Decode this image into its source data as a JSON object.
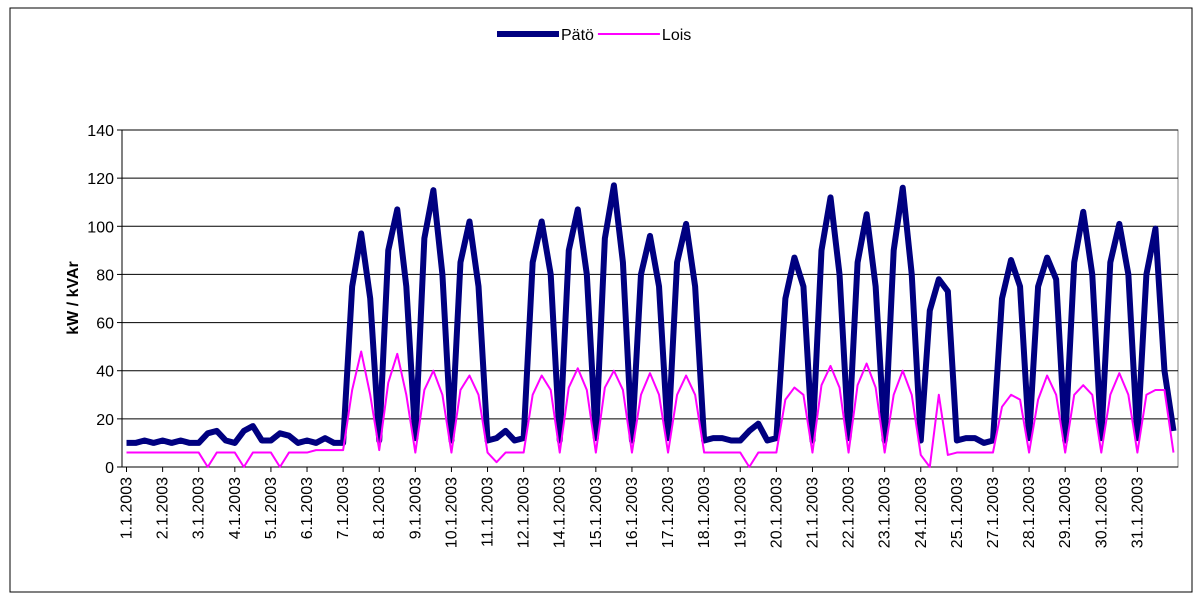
{
  "chart_data": {
    "type": "line",
    "ylabel": "kW / kVAr",
    "categories": [
      "1.1.2003",
      null,
      null,
      null,
      "2.1.2003",
      null,
      null,
      null,
      "3.1.2003",
      null,
      null,
      null,
      "4.1.2003",
      null,
      null,
      null,
      "5.1.2003",
      null,
      null,
      null,
      "6.1.2003",
      null,
      null,
      null,
      "7.1.2003",
      null,
      null,
      null,
      "8.1.2003",
      null,
      null,
      null,
      "9.1.2003",
      null,
      null,
      null,
      "10.1.2003",
      null,
      null,
      null,
      "11.1.2003",
      null,
      null,
      null,
      "12.1.2003",
      null,
      null,
      null,
      "14.1.2003",
      null,
      null,
      null,
      "15.1.2003",
      null,
      null,
      null,
      "16.1.2003",
      null,
      null,
      null,
      "17.1.2003",
      null,
      null,
      null,
      "18.1.2003",
      null,
      null,
      null,
      "19.1.2003",
      null,
      null,
      null,
      "20.1.2003",
      null,
      null,
      null,
      "21.1.2003",
      null,
      null,
      null,
      "22.1.2003",
      null,
      null,
      null,
      "23.1.2003",
      null,
      null,
      null,
      "24.1.2003",
      null,
      null,
      null,
      "25.1.2003",
      null,
      null,
      null,
      "27.1.2003",
      null,
      null,
      null,
      "28.1.2003",
      null,
      null,
      null,
      "29.1.2003",
      null,
      null,
      null,
      "30.1.2003",
      null,
      null,
      null,
      "31.1.2003",
      null,
      null,
      null,
      null
    ],
    "series": [
      {
        "name": "Pätö",
        "color": "#000080",
        "width": 6,
        "values": [
          10,
          10,
          11,
          10,
          11,
          10,
          11,
          10,
          10,
          14,
          15,
          11,
          10,
          15,
          17,
          11,
          11,
          14,
          13,
          10,
          11,
          10,
          12,
          10,
          10,
          75,
          97,
          70,
          11,
          90,
          107,
          75,
          12,
          95,
          115,
          80,
          11,
          85,
          102,
          75,
          11,
          12,
          15,
          11,
          12,
          85,
          102,
          80,
          11,
          90,
          107,
          80,
          12,
          95,
          117,
          85,
          11,
          80,
          96,
          75,
          12,
          85,
          101,
          75,
          11,
          12,
          12,
          11,
          11,
          15,
          18,
          11,
          12,
          70,
          87,
          75,
          11,
          90,
          112,
          80,
          12,
          85,
          105,
          75,
          11,
          90,
          116,
          80,
          11,
          65,
          78,
          73,
          11,
          12,
          12,
          10,
          11,
          70,
          86,
          75,
          12,
          75,
          87,
          78,
          11,
          85,
          106,
          80,
          12,
          85,
          101,
          80,
          12,
          80,
          99,
          40,
          15
        ]
      },
      {
        "name": "Lois",
        "color": "#ff00ff",
        "width": 2,
        "values": [
          6,
          6,
          6,
          6,
          6,
          6,
          6,
          6,
          6,
          0,
          6,
          6,
          6,
          0,
          6,
          6,
          6,
          0,
          6,
          6,
          6,
          7,
          7,
          7,
          7,
          32,
          48,
          30,
          7,
          35,
          47,
          30,
          6,
          32,
          40,
          30,
          6,
          32,
          38,
          30,
          6,
          2,
          6,
          6,
          6,
          30,
          38,
          32,
          6,
          33,
          41,
          32,
          6,
          33,
          40,
          32,
          6,
          30,
          39,
          30,
          6,
          30,
          38,
          30,
          6,
          6,
          6,
          6,
          6,
          0,
          6,
          6,
          6,
          28,
          33,
          30,
          6,
          34,
          42,
          33,
          6,
          34,
          43,
          33,
          6,
          30,
          40,
          30,
          5,
          0,
          30,
          5,
          6,
          6,
          6,
          6,
          6,
          25,
          30,
          28,
          6,
          28,
          38,
          30,
          6,
          30,
          34,
          30,
          6,
          30,
          39,
          30,
          6,
          30,
          32,
          32,
          6
        ]
      }
    ],
    "ylim": [
      0,
      140
    ],
    "yticks": [
      0,
      20,
      40,
      60,
      80,
      100,
      120,
      140
    ],
    "grid": true,
    "legend": "top"
  }
}
